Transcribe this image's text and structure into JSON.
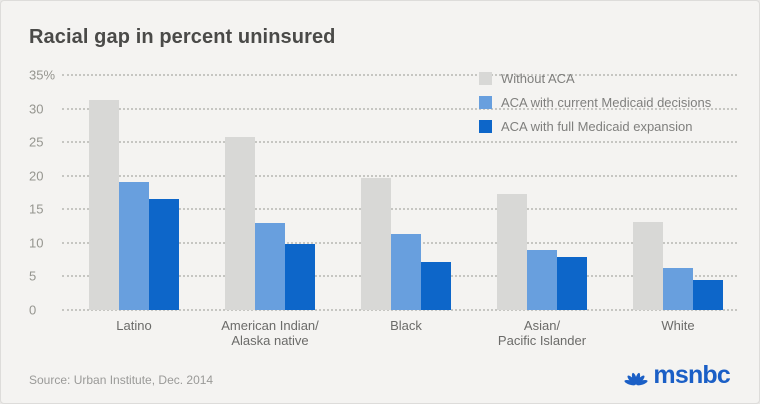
{
  "title": "Racial gap in percent uninsured",
  "source": "Source: Urban Institute, Dec. 2014",
  "brand": "msnbc",
  "colors": {
    "background": "#f4f3f1",
    "title_text": "#4a4a48",
    "axis_text": "#95958f",
    "category_text": "#6b6b69",
    "legend_text": "#7f7f7d",
    "gridline": "#c6c6c2",
    "bar_gray": "#d8d8d6",
    "bar_medium_blue": "#689fde",
    "bar_dark_blue": "#0d66c9",
    "brand_blue": "#1b5fc6"
  },
  "chart_data": {
    "type": "bar",
    "title": "Racial gap in percent uninsured",
    "categories": [
      [
        "Latino"
      ],
      [
        "American Indian/",
        "Alaska native"
      ],
      [
        "Black"
      ],
      [
        "Asian/",
        "Pacific Islander"
      ],
      [
        "White"
      ]
    ],
    "series": [
      {
        "name": "Without ACA",
        "color": "#d8d8d6",
        "values": [
          31.3,
          25.7,
          19.6,
          17.3,
          13.1
        ]
      },
      {
        "name": "ACA with current Medicaid decisions",
        "color": "#689fde",
        "values": [
          19.0,
          13.0,
          11.3,
          8.9,
          6.3
        ]
      },
      {
        "name": "ACA with full Medicaid expansion",
        "color": "#0d66c9",
        "values": [
          16.6,
          9.9,
          7.1,
          7.9,
          4.5
        ]
      }
    ],
    "xlabel": "",
    "ylabel": "",
    "ylim": [
      0,
      35
    ],
    "yticks": [
      {
        "label": "35%",
        "value": 35
      },
      {
        "label": "30",
        "value": 30
      },
      {
        "label": "25",
        "value": 25
      },
      {
        "label": "20",
        "value": 20
      },
      {
        "label": "15",
        "value": 15
      },
      {
        "label": "10",
        "value": 10
      },
      {
        "label": "5",
        "value": 5
      },
      {
        "label": "0",
        "value": 0
      }
    ],
    "grid": "dotted-horizontal",
    "legend_position": "top-right"
  }
}
